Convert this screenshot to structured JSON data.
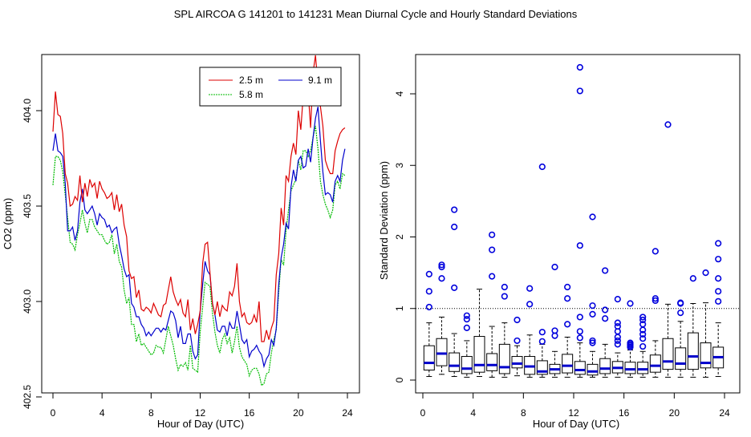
{
  "title": "SPL   AIRCOA G   141201 to 141231   Mean Diurnal Cycle and Hourly Standard Deviations",
  "chart_data": [
    {
      "type": "line",
      "xlabel": "Hour of Day (UTC)",
      "ylabel": "CO2 (ppm)",
      "xlim": [
        0,
        24
      ],
      "ylim": [
        402.5,
        404.3
      ],
      "xticks": [
        0,
        4,
        8,
        12,
        16,
        20,
        24
      ],
      "yticks": [
        402.5,
        403.0,
        403.5,
        404.0
      ],
      "ytick_labels": [
        "402.5",
        "403.0",
        "403.5",
        "404.0"
      ],
      "legend_position": "top-right",
      "x": [
        0.0,
        0.2,
        0.4,
        0.6,
        0.8,
        1.0,
        1.2,
        1.4,
        1.6,
        1.8,
        2.0,
        2.2,
        2.4,
        2.6,
        2.8,
        3.0,
        3.2,
        3.4,
        3.6,
        3.8,
        4.0,
        4.2,
        4.4,
        4.6,
        4.8,
        5.0,
        5.2,
        5.4,
        5.6,
        5.8,
        6.0,
        6.2,
        6.4,
        6.6,
        6.8,
        7.0,
        7.2,
        7.4,
        7.6,
        7.8,
        8.0,
        8.2,
        8.4,
        8.6,
        8.8,
        9.0,
        9.2,
        9.4,
        9.6,
        9.8,
        10.0,
        10.2,
        10.4,
        10.6,
        10.8,
        11.0,
        11.2,
        11.4,
        11.6,
        11.8,
        12.0,
        12.2,
        12.4,
        12.6,
        12.8,
        13.0,
        13.2,
        13.4,
        13.6,
        13.8,
        14.0,
        14.2,
        14.4,
        14.6,
        14.8,
        15.0,
        15.2,
        15.4,
        15.6,
        15.8,
        16.0,
        16.2,
        16.4,
        16.6,
        16.8,
        17.0,
        17.2,
        17.4,
        17.6,
        17.8,
        18.0,
        18.2,
        18.4,
        18.6,
        18.8,
        19.0,
        19.2,
        19.4,
        19.6,
        19.8,
        20.0,
        20.2,
        20.4,
        20.6,
        20.8,
        21.0,
        21.2,
        21.4,
        21.6,
        21.8,
        22.0,
        22.2,
        22.4,
        22.6,
        22.8,
        23.0,
        23.2,
        23.4,
        23.6,
        23.8
      ],
      "series": [
        {
          "name": "2.5 m",
          "color": "#dd0000",
          "values": [
            403.89,
            404.1,
            403.98,
            403.97,
            403.88,
            403.67,
            403.62,
            403.5,
            403.51,
            403.55,
            403.53,
            403.66,
            403.52,
            403.62,
            403.55,
            403.64,
            403.6,
            403.62,
            403.54,
            403.63,
            403.59,
            403.57,
            403.54,
            403.55,
            403.57,
            403.48,
            403.56,
            403.47,
            403.51,
            403.4,
            403.34,
            403.16,
            403.12,
            403.13,
            403.02,
            403.06,
            402.96,
            402.95,
            402.97,
            402.96,
            402.94,
            402.99,
            402.96,
            402.93,
            402.92,
            402.98,
            402.99,
            403.06,
            403.13,
            403.05,
            403.01,
            402.98,
            403.01,
            402.94,
            402.92,
            403.01,
            402.85,
            402.91,
            402.83,
            402.88,
            402.95,
            403.2,
            403.3,
            403.31,
            403.15,
            402.99,
            402.93,
            403.0,
            402.92,
            402.98,
            402.96,
            402.95,
            403.05,
            403.03,
            403.08,
            403.2,
            403.0,
            402.92,
            402.94,
            402.89,
            402.88,
            402.89,
            402.93,
            402.89,
            403.0,
            402.79,
            402.79,
            402.85,
            402.8,
            402.86,
            402.9,
            403.14,
            403.25,
            403.49,
            403.4,
            403.66,
            403.63,
            403.76,
            403.83,
            403.77,
            404.0,
            403.9,
            404.08,
            404.03,
            404.1,
            403.91,
            404.2,
            404.29,
            404.13,
            404.02,
            403.92,
            403.74,
            403.7,
            403.67,
            403.67,
            403.79,
            403.84,
            403.88,
            403.9,
            403.91
          ]
        },
        {
          "name": "9.1 m",
          "color": "#0000cc",
          "values": [
            403.79,
            403.88,
            403.79,
            403.78,
            403.76,
            403.62,
            403.37,
            403.37,
            403.39,
            403.32,
            403.37,
            403.52,
            403.59,
            403.48,
            403.46,
            403.48,
            403.5,
            403.46,
            403.4,
            403.46,
            403.44,
            403.43,
            403.39,
            403.4,
            403.36,
            403.38,
            403.39,
            403.3,
            403.24,
            403.17,
            403.13,
            403.14,
            402.99,
            402.97,
            402.92,
            402.92,
            402.88,
            402.86,
            402.82,
            402.84,
            402.82,
            402.84,
            402.86,
            402.86,
            402.84,
            402.86,
            402.85,
            402.9,
            402.95,
            402.94,
            402.9,
            402.81,
            402.87,
            402.78,
            402.78,
            402.83,
            402.83,
            402.74,
            402.7,
            402.72,
            402.95,
            403.09,
            403.21,
            403.16,
            403.14,
            402.99,
            402.93,
            402.85,
            402.84,
            402.87,
            402.87,
            402.82,
            402.89,
            402.86,
            402.86,
            402.95,
            402.88,
            402.8,
            402.78,
            402.8,
            402.71,
            402.74,
            402.75,
            402.77,
            402.74,
            402.72,
            402.66,
            402.7,
            402.72,
            402.8,
            402.77,
            402.86,
            403.09,
            403.23,
            403.3,
            403.41,
            403.38,
            403.6,
            403.69,
            403.63,
            403.74,
            403.76,
            403.7,
            403.71,
            403.8,
            403.73,
            403.86,
            403.96,
            404.02,
            403.84,
            403.68,
            403.56,
            403.57,
            403.56,
            403.52,
            403.63,
            403.66,
            403.63,
            403.74,
            403.8
          ]
        },
        {
          "name": "5.8 m",
          "color": "#00bb00",
          "values": [
            403.61,
            403.76,
            403.76,
            403.74,
            403.68,
            403.56,
            403.44,
            403.31,
            403.3,
            403.27,
            403.35,
            403.41,
            403.48,
            403.41,
            403.36,
            403.43,
            403.43,
            403.39,
            403.37,
            403.35,
            403.35,
            403.32,
            403.3,
            403.31,
            403.35,
            403.25,
            403.3,
            403.21,
            403.18,
            403.06,
            402.99,
            403.02,
            402.88,
            402.88,
            402.79,
            402.83,
            402.77,
            402.78,
            402.76,
            402.74,
            402.72,
            402.73,
            402.77,
            402.76,
            402.76,
            402.73,
            402.8,
            402.87,
            402.82,
            402.77,
            402.7,
            402.64,
            402.67,
            402.66,
            402.68,
            402.64,
            402.77,
            402.65,
            402.64,
            402.63,
            402.84,
            402.97,
            403.1,
            403.09,
            403.08,
            402.94,
            402.84,
            402.77,
            402.73,
            402.8,
            402.83,
            402.78,
            402.81,
            402.73,
            402.79,
            402.87,
            402.76,
            402.71,
            402.69,
            402.67,
            402.61,
            402.64,
            402.65,
            402.65,
            402.62,
            402.56,
            402.57,
            402.62,
            402.63,
            402.73,
            402.8,
            402.85,
            403.05,
            403.22,
            403.19,
            403.37,
            403.48,
            403.58,
            403.61,
            403.64,
            403.74,
            403.69,
            403.79,
            403.79,
            403.76,
            403.79,
            403.86,
            403.92,
            403.8,
            403.63,
            403.56,
            403.51,
            403.48,
            403.44,
            403.48,
            403.61,
            403.63,
            403.59,
            403.67,
            403.66
          ]
        }
      ]
    },
    {
      "type": "box",
      "xlabel": "Hour of Day (UTC)",
      "ylabel": "Standard Deviation (ppm)",
      "xlim": [
        0,
        24
      ],
      "ylim": [
        0,
        4.45
      ],
      "xticks": [
        0,
        4,
        8,
        12,
        16,
        20,
        24
      ],
      "yticks": [
        0,
        1,
        2,
        3,
        4
      ],
      "reference_line": 1,
      "boxes": [
        {
          "hour": 0.5,
          "min": 0.05,
          "q1": 0.14,
          "median": 0.24,
          "q3": 0.48,
          "max": 0.8,
          "outliers": [
            1.02,
            1.24,
            1.48
          ]
        },
        {
          "hour": 1.5,
          "min": 0.08,
          "q1": 0.2,
          "median": 0.37,
          "q3": 0.58,
          "max": 0.88,
          "outliers": [
            1.42,
            1.58,
            1.61
          ]
        },
        {
          "hour": 2.5,
          "min": 0.05,
          "q1": 0.12,
          "median": 0.2,
          "q3": 0.38,
          "max": 0.65,
          "outliers": [
            1.29,
            2.14,
            2.38
          ]
        },
        {
          "hour": 3.5,
          "min": 0.04,
          "q1": 0.09,
          "median": 0.16,
          "q3": 0.33,
          "max": 0.55,
          "outliers": [
            0.73,
            0.85,
            0.9
          ]
        },
        {
          "hour": 4.5,
          "min": 0.05,
          "q1": 0.11,
          "median": 0.21,
          "q3": 0.61,
          "max": 1.27,
          "outliers": []
        },
        {
          "hour": 5.5,
          "min": 0.04,
          "q1": 0.13,
          "median": 0.21,
          "q3": 0.37,
          "max": 0.75,
          "outliers": [
            1.45,
            1.82,
            2.03
          ]
        },
        {
          "hour": 6.5,
          "min": 0.04,
          "q1": 0.09,
          "median": 0.18,
          "q3": 0.5,
          "max": 0.8,
          "outliers": [
            1.17,
            1.3
          ]
        },
        {
          "hour": 7.5,
          "min": 0.06,
          "q1": 0.17,
          "median": 0.23,
          "q3": 0.33,
          "max": 0.48,
          "outliers": [
            0.55,
            0.84
          ]
        },
        {
          "hour": 8.5,
          "min": 0.04,
          "q1": 0.08,
          "median": 0.19,
          "q3": 0.33,
          "max": 0.63,
          "outliers": [
            1.06,
            1.28
          ]
        },
        {
          "hour": 9.5,
          "min": 0.04,
          "q1": 0.08,
          "median": 0.12,
          "q3": 0.27,
          "max": 0.5,
          "outliers": [
            0.54,
            0.67,
            2.98
          ]
        },
        {
          "hour": 10.5,
          "min": 0.04,
          "q1": 0.09,
          "median": 0.15,
          "q3": 0.22,
          "max": 0.4,
          "outliers": [
            0.62,
            0.69,
            1.58
          ]
        },
        {
          "hour": 11.5,
          "min": 0.04,
          "q1": 0.1,
          "median": 0.2,
          "q3": 0.36,
          "max": 0.6,
          "outliers": [
            0.78,
            1.14,
            1.3
          ]
        },
        {
          "hour": 12.5,
          "min": 0.04,
          "q1": 0.08,
          "median": 0.14,
          "q3": 0.26,
          "max": 0.52,
          "outliers": [
            0.59,
            0.68,
            0.88,
            1.88,
            4.04,
            4.37
          ]
        },
        {
          "hour": 13.5,
          "min": 0.04,
          "q1": 0.07,
          "median": 0.12,
          "q3": 0.22,
          "max": 0.4,
          "outliers": [
            0.52,
            0.55,
            0.92,
            1.04,
            2.28
          ]
        },
        {
          "hour": 14.5,
          "min": 0.04,
          "q1": 0.09,
          "median": 0.16,
          "q3": 0.3,
          "max": 0.5,
          "outliers": [
            0.86,
            0.98,
            1.53
          ]
        },
        {
          "hour": 15.5,
          "min": 0.04,
          "q1": 0.1,
          "median": 0.17,
          "q3": 0.26,
          "max": 0.38,
          "outliers": [
            0.5,
            0.55,
            0.6,
            0.68,
            0.75,
            0.8,
            1.13
          ]
        },
        {
          "hour": 16.5,
          "min": 0.04,
          "q1": 0.09,
          "median": 0.15,
          "q3": 0.25,
          "max": 0.42,
          "outliers": [
            0.46,
            0.48,
            0.5,
            0.52,
            1.07
          ]
        },
        {
          "hour": 17.5,
          "min": 0.04,
          "q1": 0.09,
          "median": 0.15,
          "q3": 0.25,
          "max": 0.4,
          "outliers": [
            0.47,
            0.58,
            0.64,
            0.7,
            0.78,
            0.84,
            0.88
          ]
        },
        {
          "hour": 18.5,
          "min": 0.04,
          "q1": 0.11,
          "median": 0.2,
          "q3": 0.35,
          "max": 0.55,
          "outliers": [
            1.11,
            1.14,
            1.8
          ]
        },
        {
          "hour": 19.5,
          "min": 0.04,
          "q1": 0.15,
          "median": 0.26,
          "q3": 0.58,
          "max": 1.06,
          "outliers": [
            3.57
          ]
        },
        {
          "hour": 20.5,
          "min": 0.04,
          "q1": 0.15,
          "median": 0.23,
          "q3": 0.45,
          "max": 0.82,
          "outliers": [
            0.94,
            1.07,
            1.08
          ]
        },
        {
          "hour": 21.5,
          "min": 0.04,
          "q1": 0.15,
          "median": 0.33,
          "q3": 0.66,
          "max": 1.07,
          "outliers": [
            1.42
          ]
        },
        {
          "hour": 22.5,
          "min": 0.04,
          "q1": 0.17,
          "median": 0.24,
          "q3": 0.52,
          "max": 1.08,
          "outliers": [
            1.5
          ]
        },
        {
          "hour": 23.5,
          "min": 0.05,
          "q1": 0.17,
          "median": 0.32,
          "q3": 0.46,
          "max": 0.8,
          "outliers": [
            1.1,
            1.24,
            1.42,
            1.69,
            1.91
          ]
        }
      ]
    }
  ]
}
